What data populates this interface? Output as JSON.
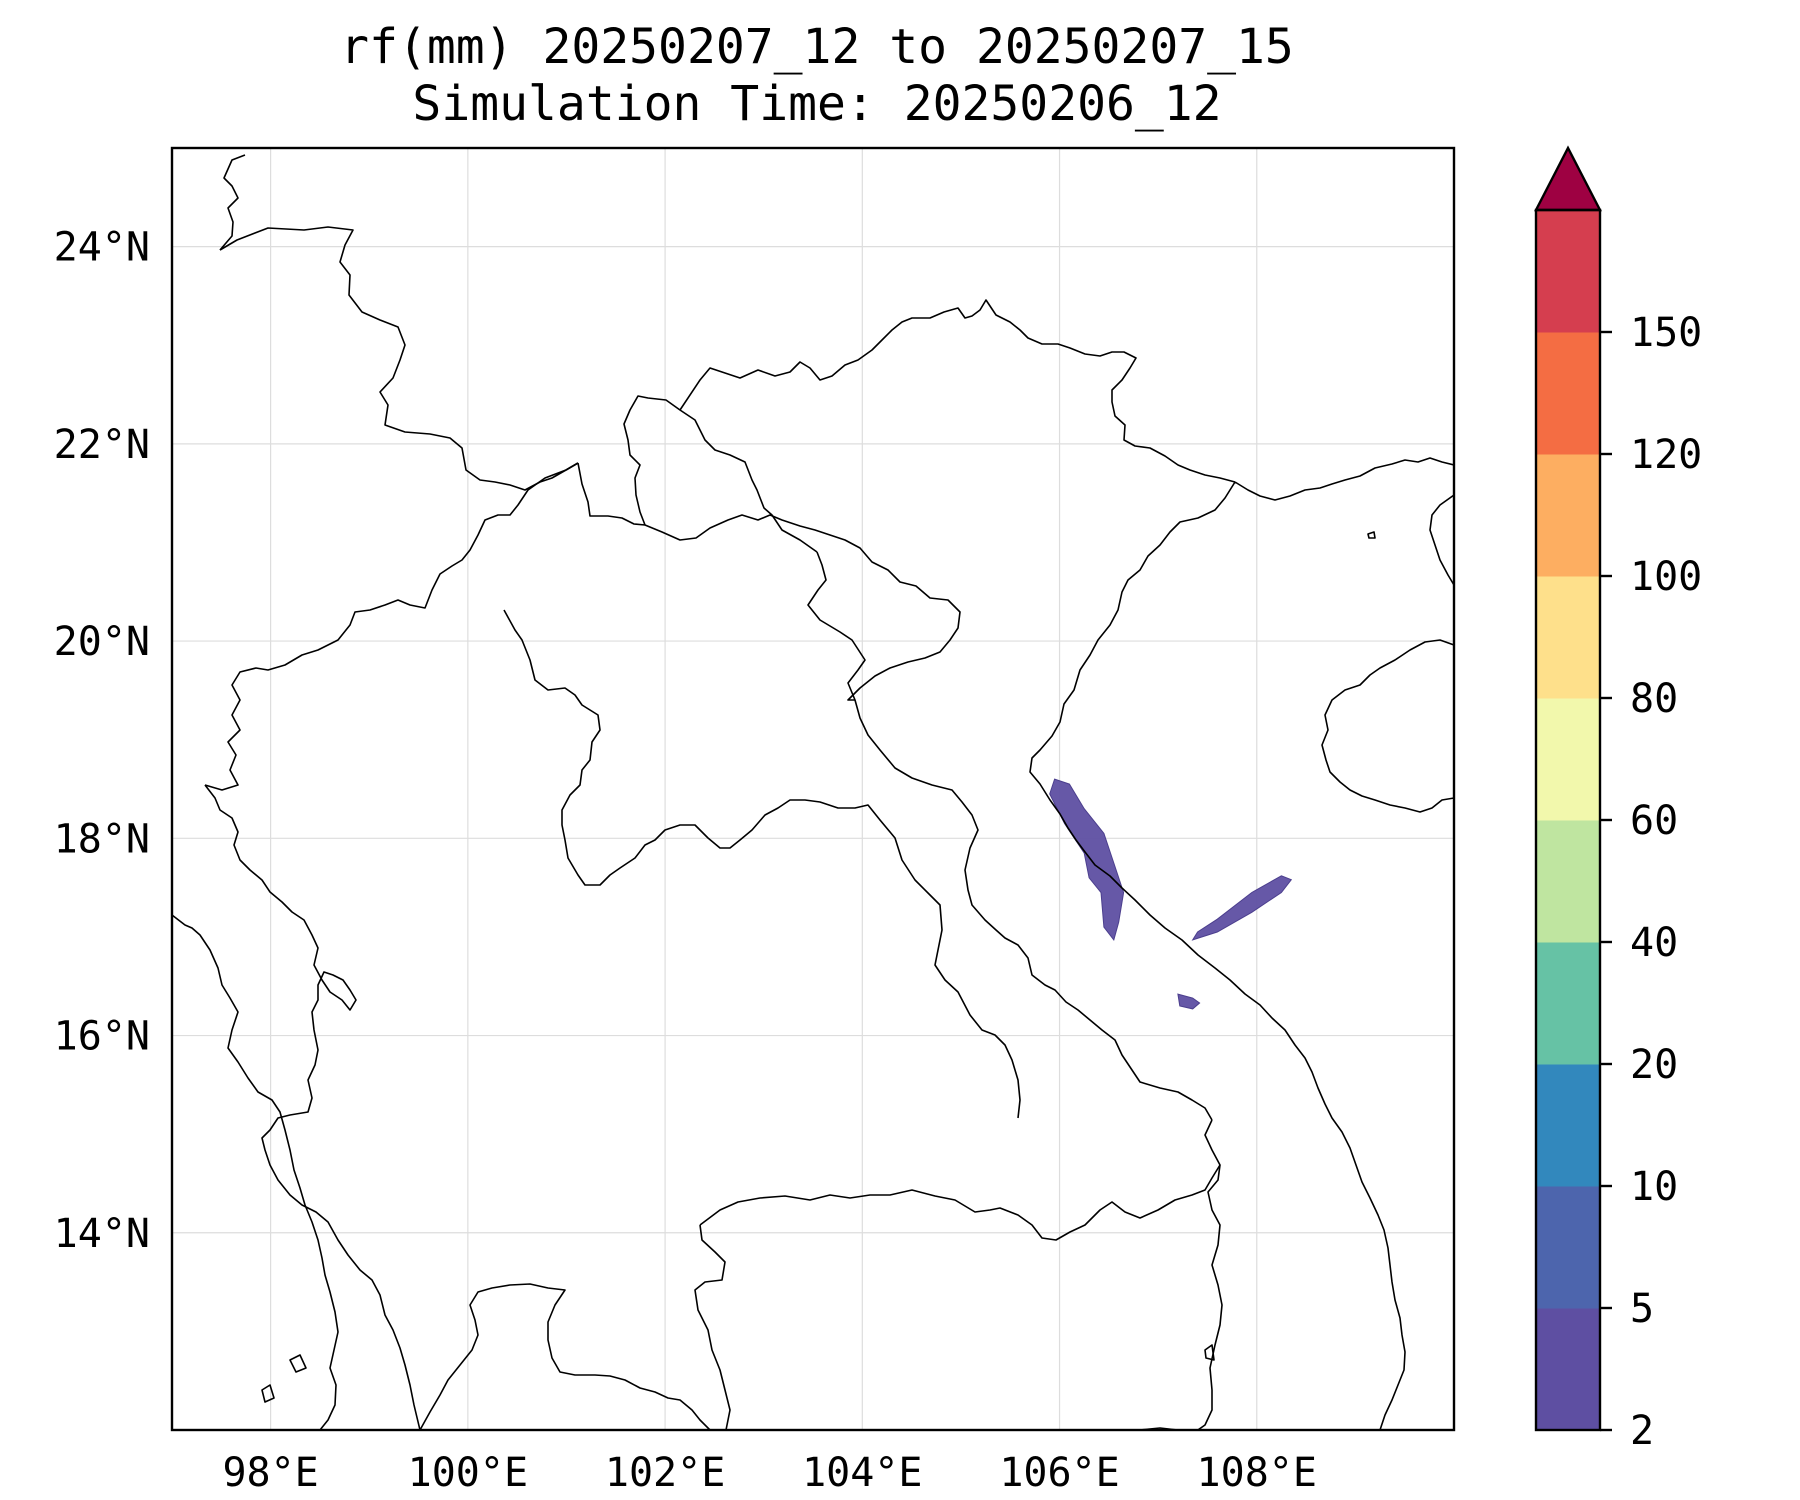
{
  "title": {
    "line1": "rf(mm) 20250207_12 to 20250207_15",
    "line2": "Simulation Time: 20250206_12"
  },
  "map": {
    "lon_range": [
      97,
      110
    ],
    "lat_range": [
      12,
      25
    ],
    "lon_ticks": [
      {
        "value": 98,
        "label": "98°E"
      },
      {
        "value": 100,
        "label": "100°E"
      },
      {
        "value": 102,
        "label": "102°E"
      },
      {
        "value": 104,
        "label": "104°E"
      },
      {
        "value": 106,
        "label": "106°E"
      },
      {
        "value": 108,
        "label": "108°E"
      }
    ],
    "lat_ticks": [
      {
        "value": 24,
        "label": "24°N"
      },
      {
        "value": 22,
        "label": "22°N"
      },
      {
        "value": 20,
        "label": "20°N"
      },
      {
        "value": 18,
        "label": "18°N"
      },
      {
        "value": 16,
        "label": "16°N"
      },
      {
        "value": 14,
        "label": "14°N"
      }
    ],
    "grid": true,
    "rain_areas": [
      {
        "name": "north-central-vietnam-band",
        "level": "2-5 mm",
        "outline": [
          [
            105.95,
            18.6
          ],
          [
            106.1,
            18.55
          ],
          [
            106.25,
            18.3
          ],
          [
            106.45,
            18.05
          ],
          [
            106.55,
            17.75
          ],
          [
            106.65,
            17.45
          ],
          [
            106.6,
            17.15
          ],
          [
            106.55,
            16.97
          ],
          [
            106.45,
            17.1
          ],
          [
            106.42,
            17.45
          ],
          [
            106.3,
            17.6
          ],
          [
            106.25,
            17.85
          ],
          [
            106.05,
            18.15
          ],
          [
            105.9,
            18.45
          ]
        ]
      },
      {
        "name": "offshore-band",
        "level": "2-5 mm",
        "outline": [
          [
            107.35,
            16.97
          ],
          [
            107.6,
            17.05
          ],
          [
            107.95,
            17.25
          ],
          [
            108.25,
            17.45
          ],
          [
            108.35,
            17.58
          ],
          [
            108.25,
            17.62
          ],
          [
            107.95,
            17.45
          ],
          [
            107.6,
            17.18
          ],
          [
            107.4,
            17.05
          ]
        ]
      },
      {
        "name": "small-cell",
        "level": "2-5 mm",
        "outline": [
          [
            107.2,
            16.42
          ],
          [
            107.35,
            16.38
          ],
          [
            107.42,
            16.33
          ],
          [
            107.35,
            16.27
          ],
          [
            107.22,
            16.3
          ]
        ]
      }
    ]
  },
  "colorbar": {
    "levels": [
      "2",
      "5",
      "10",
      "20",
      "40",
      "60",
      "80",
      "100",
      "120",
      "150"
    ],
    "colors": [
      "#5e4fa2",
      "#4d65ad",
      "#3288bd",
      "#66c2a5",
      "#bfe5a0",
      "#f2f8ac",
      "#fee08b",
      "#fdae61",
      "#f46d43",
      "#d53e4f"
    ],
    "extend_color": "#9e0142"
  },
  "chart_data": {
    "type": "heatmap",
    "title": "rf(mm) 20250207_12 to 20250207_15",
    "subtitle": "Simulation Time: 20250206_12",
    "x_range_lon": [
      97,
      110
    ],
    "y_range_lat": [
      12,
      25
    ],
    "colorbar_levels_mm": [
      2,
      5,
      10,
      20,
      40,
      60,
      80,
      100,
      120,
      150
    ],
    "colorbar_extend": "max",
    "rainfall_regions": [
      {
        "area": "north-central Vietnam coast (approx. 106-106.6°E, 17-18.6°N)",
        "category_mm": "2-5"
      },
      {
        "area": "offshore Gulf of Tonkin (approx. 107.3-108.3°E, 17-17.6°N)",
        "category_mm": "2-5"
      },
      {
        "area": "near 107.3°E, 16.35°N",
        "category_mm": "2-5"
      }
    ]
  }
}
